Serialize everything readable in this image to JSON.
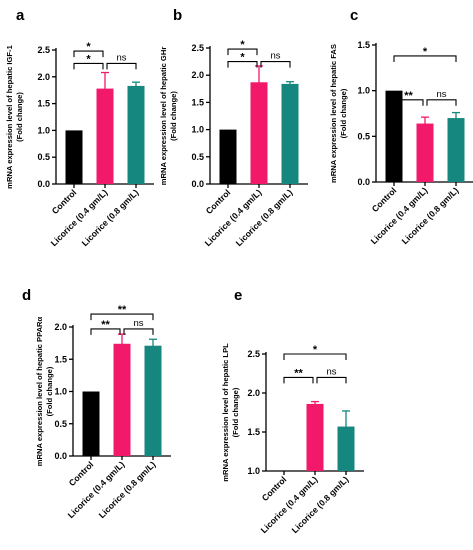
{
  "colors": {
    "control": "#000000",
    "low": "#f2196b",
    "high": "#16877e"
  },
  "chart_data": [
    {
      "panel": "a",
      "type": "bar",
      "ylabel": "mRNA expression level of  hepatic IGF-1 (Fold change)",
      "ylabel_lines": [
        "mRNA expression level of  hepatic IGF-1",
        "(Fold change)"
      ],
      "categories": [
        "Control",
        "Licorice (0.4 gm/L)",
        "Licorice (0.8 gm/L)"
      ],
      "values": [
        1.0,
        1.78,
        1.83
      ],
      "errors": [
        0.0,
        0.3,
        0.07
      ],
      "ylim": [
        0,
        2.5
      ],
      "yticks": [
        "0.0",
        "0.5",
        "1.0",
        "1.5",
        "2.0",
        "2.5"
      ],
      "annotations": [
        {
          "from": 1,
          "to": 2,
          "level": 2.48,
          "label": "*"
        },
        {
          "from": 1,
          "to": 2,
          "level": 2.25,
          "label": "*"
        },
        {
          "from": 2,
          "to": 3,
          "level": 2.25,
          "label": "ns"
        }
      ]
    },
    {
      "panel": "b",
      "type": "bar",
      "ylabel": "mRNA expression level of  hepatic GHr (Fold change)",
      "ylabel_lines": [
        "mRNA expression level of  hepatic GHr",
        "(Fold change)"
      ],
      "categories": [
        "Control",
        "Licorice (0.4 gm/L)",
        "Licorice (0.8 gm/L)"
      ],
      "values": [
        1.0,
        1.87,
        1.84
      ],
      "errors": [
        0.0,
        0.3,
        0.04
      ],
      "ylim": [
        0,
        2.5
      ],
      "yticks": [
        "0.0",
        "0.5",
        "1.0",
        "1.5",
        "2.0",
        "2.5"
      ],
      "annotations": [
        {
          "from": 1,
          "to": 2,
          "level": 2.48,
          "label": "*"
        },
        {
          "from": 1,
          "to": 2,
          "level": 2.25,
          "label": "*"
        },
        {
          "from": 2,
          "to": 3,
          "level": 2.25,
          "label": "ns"
        }
      ]
    },
    {
      "panel": "c",
      "type": "bar",
      "ylabel": "mRNA expression level of  hepatic FAS (Fold change)",
      "ylabel_lines": [
        "mRNA expression level of  hepatic FAS",
        "(Fold change)"
      ],
      "categories": [
        "Control",
        "Licorice (0.4 gm/L)",
        "Licorice (0.8 gm/L)"
      ],
      "values": [
        1.0,
        0.64,
        0.7
      ],
      "errors": [
        0.0,
        0.07,
        0.06
      ],
      "ylim": [
        0,
        1.5
      ],
      "yticks": [
        "0.0",
        "0.5",
        "1.0",
        "1.5"
      ],
      "annotations": [
        {
          "from": 1,
          "to": 3,
          "level": 1.38,
          "label": "*"
        },
        {
          "from": 1,
          "to": 2,
          "level": 0.9,
          "label": "**"
        },
        {
          "from": 2,
          "to": 3,
          "level": 0.9,
          "label": "ns"
        }
      ]
    },
    {
      "panel": "d",
      "type": "bar",
      "ylabel": "mRNA expression level of  hepatic PPARα (Fold change)",
      "ylabel_lines": [
        "mRNA expression level of  hepatic PPARα",
        "(Fold change)"
      ],
      "categories": [
        "Control",
        "Licorice (0.4 gm/L)",
        "Licorice (0.8 gm/L)"
      ],
      "values": [
        1.0,
        1.74,
        1.71
      ],
      "errors": [
        0.0,
        0.15,
        0.1
      ],
      "ylim": [
        0,
        2.0
      ],
      "yticks": [
        "0.0",
        "0.5",
        "1.0",
        "1.5",
        "2.0"
      ],
      "annotations": [
        {
          "from": 1,
          "to": 3,
          "level": 2.2,
          "label": "**"
        },
        {
          "from": 1,
          "to": 2,
          "level": 1.97,
          "label": "**"
        },
        {
          "from": 2,
          "to": 3,
          "level": 1.97,
          "label": "ns"
        }
      ]
    },
    {
      "panel": "e",
      "type": "bar",
      "ylabel": "mRNA expression level of  hepatic LPL (Fold change)",
      "ylabel_lines": [
        "mRNA expression level of  hepatic LPL",
        "(Fold change)"
      ],
      "categories": [
        "Control",
        "Licorice (0.4 gm/L)",
        "Licorice (0.8 gm/L)"
      ],
      "values": [
        1.0,
        1.86,
        1.57
      ],
      "errors": [
        0.0,
        0.03,
        0.2
      ],
      "ylim": [
        0,
        2.5
      ],
      "yticks": [
        "1.0",
        "1.5",
        "2.0",
        "2.5"
      ],
      "annotations": [
        {
          "from": 1,
          "to": 3,
          "level": 2.5,
          "label": "*"
        },
        {
          "from": 1,
          "to": 2,
          "level": 2.2,
          "label": "**"
        },
        {
          "from": 2,
          "to": 3,
          "level": 2.2,
          "label": "ns"
        }
      ]
    }
  ]
}
